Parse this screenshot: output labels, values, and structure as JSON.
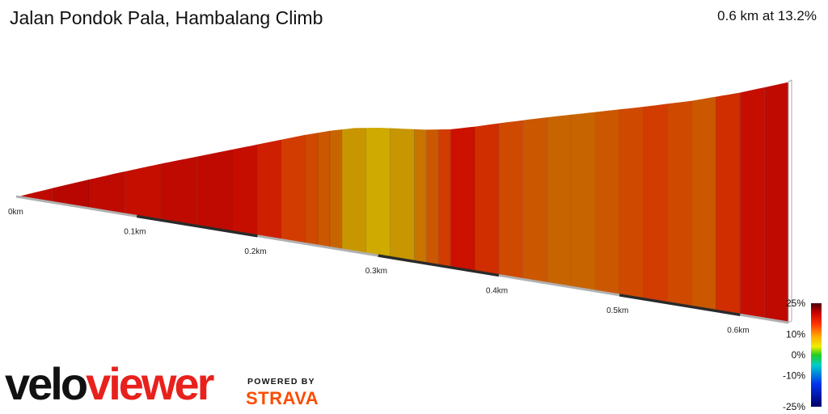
{
  "header": {
    "title": "Jalan Pondok Pala, Hambalang Climb",
    "summary": "0.6 km at 13.2%"
  },
  "branding": {
    "logo_text_velo": "velo",
    "logo_text_viewer": "viewer",
    "powered_by": "POWERED BY",
    "strava": "STRAVA",
    "colors": {
      "velo": "#111111",
      "viewer": "#e8211d",
      "strava": "#fc4c02"
    }
  },
  "chart_data": {
    "type": "area",
    "xlabel": "",
    "ylabel": "",
    "x_ticks": [
      "0km",
      "0.1km",
      "0.2km",
      "0.3km",
      "0.4km",
      "0.5km",
      "0.6km"
    ],
    "x_tick_values": [
      0,
      0.1,
      0.2,
      0.3,
      0.4,
      0.5,
      0.6
    ],
    "xlim": [
      0,
      0.64
    ],
    "profile": {
      "distance_km": [
        0,
        0.04,
        0.08,
        0.12,
        0.16,
        0.2,
        0.24,
        0.26,
        0.28,
        0.3,
        0.32,
        0.34,
        0.36,
        0.38,
        0.4,
        0.44,
        0.48,
        0.52,
        0.56,
        0.6,
        0.64
      ],
      "elevation_rel": [
        0,
        5.4,
        10.6,
        15.6,
        20.4,
        25.2,
        30.0,
        32.2,
        34.0,
        35.2,
        36.0,
        36.8,
        38.0,
        39.8,
        41.8,
        45.6,
        49.2,
        52.8,
        56.6,
        61.0,
        66.0
      ]
    },
    "gradient_segments": {
      "start_km": [
        0,
        0.03,
        0.06,
        0.09,
        0.12,
        0.15,
        0.18,
        0.2,
        0.22,
        0.24,
        0.25,
        0.26,
        0.27,
        0.29,
        0.31,
        0.33,
        0.34,
        0.35,
        0.36,
        0.38,
        0.4,
        0.42,
        0.44,
        0.46,
        0.48,
        0.5,
        0.52,
        0.54,
        0.56,
        0.58,
        0.6,
        0.62
      ],
      "grade_pct": [
        17,
        18,
        17,
        16,
        17,
        17,
        16,
        14,
        12,
        11,
        10,
        9,
        6,
        5,
        6,
        8,
        10,
        12,
        15,
        13,
        11,
        10,
        9,
        9,
        10,
        11,
        12,
        11,
        10,
        13,
        16,
        17
      ]
    },
    "color_scale": {
      "labels": [
        "25%",
        "10%",
        "0%",
        "-10%",
        "-25%"
      ],
      "label_values": [
        25,
        10,
        0,
        -10,
        -25
      ],
      "range": [
        -25,
        25
      ]
    }
  }
}
